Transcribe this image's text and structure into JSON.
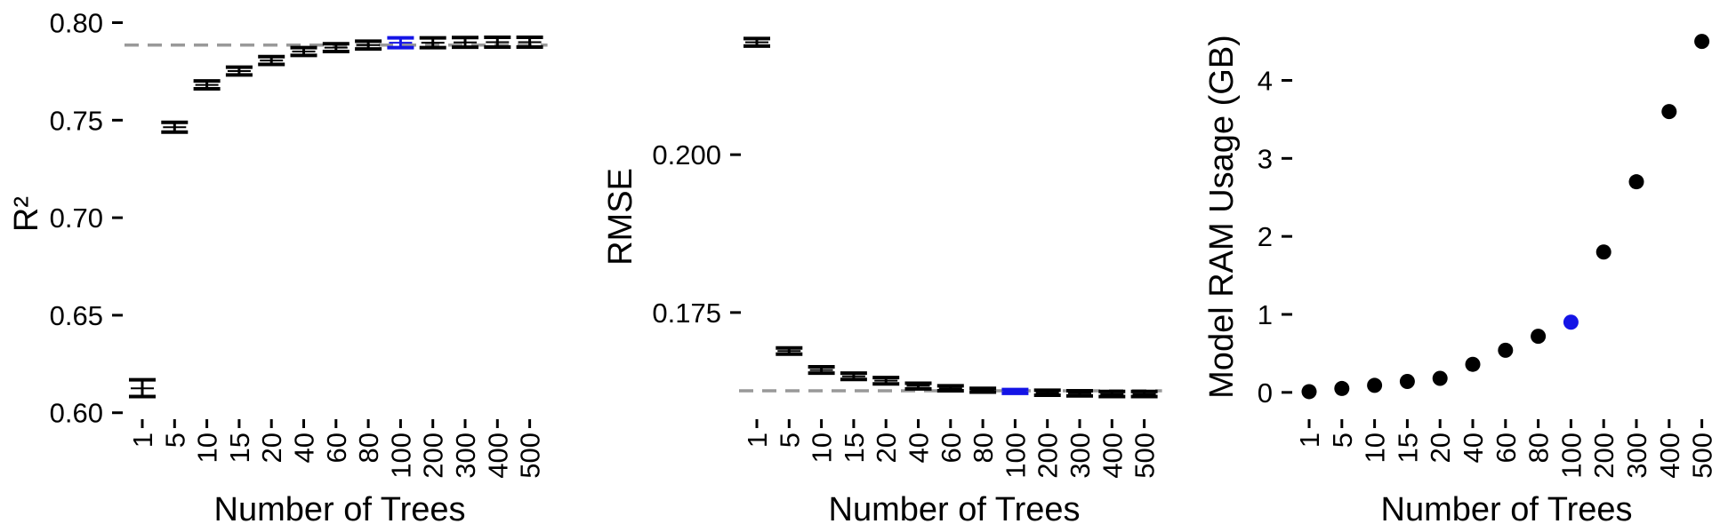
{
  "chart_data": [
    {
      "type": "errorbar",
      "ylabel": "R²",
      "xlabel": "Number of Trees",
      "categories": [
        "1",
        "5",
        "10",
        "15",
        "20",
        "40",
        "60",
        "80",
        "100",
        "200",
        "300",
        "400",
        "500"
      ],
      "values": [
        0.6125,
        0.7464,
        0.7681,
        0.7752,
        0.7806,
        0.7852,
        0.7872,
        0.7885,
        0.7897,
        0.7897,
        0.7899,
        0.79,
        0.79
      ],
      "err_low": [
        0.6083,
        0.7439,
        0.7661,
        0.7732,
        0.7786,
        0.7832,
        0.7852,
        0.7865,
        0.7872,
        0.7872,
        0.7874,
        0.7875,
        0.7875
      ],
      "err_high": [
        0.6169,
        0.7489,
        0.7701,
        0.7772,
        0.7826,
        0.7872,
        0.7892,
        0.7905,
        0.7922,
        0.7922,
        0.7924,
        0.7925,
        0.7925
      ],
      "reference_line": 0.7885,
      "highlight_index": 8,
      "yticks": [
        0.6,
        0.65,
        0.7,
        0.75,
        0.8
      ],
      "ytick_labels": [
        "0.60",
        "0.65",
        "0.70",
        "0.75",
        "0.80"
      ],
      "ylim": [
        0.5976,
        0.8016
      ]
    },
    {
      "type": "errorbar",
      "ylabel": "RMSE",
      "xlabel": "Number of Trees",
      "categories": [
        "1",
        "5",
        "10",
        "15",
        "20",
        "40",
        "60",
        "80",
        "100",
        "200",
        "300",
        "400",
        "500"
      ],
      "values": [
        0.2178,
        0.1689,
        0.1659,
        0.1649,
        0.1642,
        0.1634,
        0.163,
        0.1627,
        0.1625,
        0.1623,
        0.1622,
        0.1621,
        0.1621
      ],
      "err_low": [
        0.2172,
        0.1684,
        0.1654,
        0.1644,
        0.1637,
        0.1629,
        0.1626,
        0.1624,
        0.1622,
        0.1619,
        0.1618,
        0.1617,
        0.1617
      ],
      "err_high": [
        0.2184,
        0.1694,
        0.1664,
        0.1654,
        0.1647,
        0.1638,
        0.1634,
        0.163,
        0.1628,
        0.1627,
        0.1626,
        0.1625,
        0.1625
      ],
      "reference_line": 0.1626,
      "highlight_index": 8,
      "yticks": [
        0.175,
        0.2
      ],
      "ytick_labels": [
        "0.175",
        "0.200"
      ],
      "ylim": [
        0.1612,
        0.2214
      ]
    },
    {
      "type": "scatter",
      "ylabel": "Model RAM Usage (GB)",
      "xlabel": "Number of Trees",
      "categories": [
        "1",
        "5",
        "10",
        "15",
        "20",
        "40",
        "60",
        "80",
        "100",
        "200",
        "300",
        "400",
        "500"
      ],
      "values": [
        0.01,
        0.05,
        0.09,
        0.14,
        0.18,
        0.36,
        0.54,
        0.72,
        0.9,
        1.8,
        2.7,
        3.6,
        4.5
      ],
      "highlight_index": 8,
      "yticks": [
        0,
        1,
        2,
        3,
        4
      ],
      "ytick_labels": [
        "0",
        "1",
        "2",
        "3",
        "4"
      ],
      "ylim": [
        -0.15,
        4.78
      ]
    }
  ],
  "colors": {
    "default": "#000000",
    "highlight": "#1414e6",
    "reference": "#999999"
  }
}
